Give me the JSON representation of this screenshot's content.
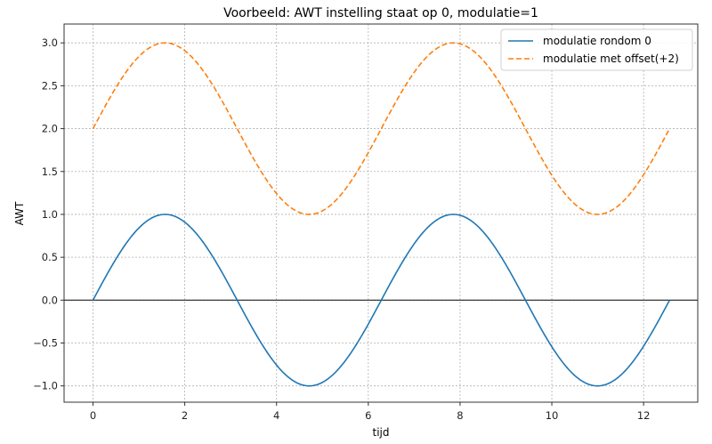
{
  "chart_data": {
    "type": "line",
    "title": "Voorbeeld: AWT instelling staat op 0, modulatie=1",
    "xlabel": "tijd",
    "ylabel": "AWT",
    "xlim": [
      -0.63,
      13.18
    ],
    "ylim": [
      -1.19,
      3.22
    ],
    "xticks": [
      0,
      2,
      4,
      6,
      8,
      10,
      12
    ],
    "xtick_labels": [
      "0",
      "2",
      "4",
      "6",
      "8",
      "10",
      "12"
    ],
    "yticks": [
      -1.0,
      -0.5,
      0.0,
      0.5,
      1.0,
      1.5,
      2.0,
      2.5,
      3.0
    ],
    "ytick_labels": [
      "−1.0",
      "−0.5",
      "0.0",
      "0.5",
      "1.0",
      "1.5",
      "2.0",
      "2.5",
      "3.0"
    ],
    "grid": true,
    "legend_position": "upper right",
    "hline": {
      "y": 0,
      "color": "#000000"
    },
    "x_domain": [
      0,
      12.566
    ],
    "series": [
      {
        "name": "modulatie rondom 0",
        "function": "sin(t)",
        "color": "#1f77b4",
        "linestyle": "solid",
        "x": [
          0,
          1.571,
          3.142,
          4.712,
          6.283,
          7.854,
          9.425,
          10.996,
          12.566
        ],
        "values": [
          0,
          1,
          0,
          -1,
          0,
          1,
          0,
          -1,
          0
        ]
      },
      {
        "name": "modulatie met offset(+2)",
        "function": "sin(t)+2",
        "color": "#ff7f0e",
        "linestyle": "dashed",
        "x": [
          0,
          1.571,
          3.142,
          4.712,
          6.283,
          7.854,
          9.425,
          10.996,
          12.566
        ],
        "values": [
          2,
          3,
          2,
          1,
          2,
          3,
          2,
          1,
          2
        ]
      }
    ]
  }
}
